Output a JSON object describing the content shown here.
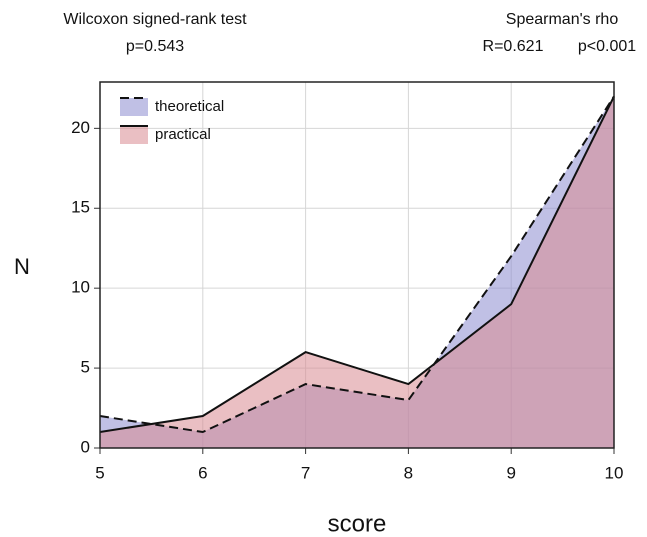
{
  "chart_data": {
    "type": "area",
    "annotations": [
      "Wilcoxon signed-rank test",
      "p=0.543",
      "Spearman's rho",
      "R=0.621",
      "p<0.001"
    ],
    "xlabel": "score",
    "ylabel": "N",
    "x": [
      5,
      6,
      7,
      8,
      9,
      10
    ],
    "series": [
      {
        "name": "theoretical",
        "color": "#8c8ccf",
        "dash": "dashed",
        "values": [
          2,
          1,
          4,
          3,
          12,
          22
        ]
      },
      {
        "name": "practical",
        "color": "#d98a92",
        "dash": "solid",
        "values": [
          1,
          2,
          6,
          4,
          9,
          22
        ]
      }
    ],
    "xlim": [
      5,
      10
    ],
    "xticks": [
      5,
      6,
      7,
      8,
      9,
      10
    ],
    "ylim": [
      0,
      22.9
    ],
    "yticks": [
      0,
      5,
      10,
      15,
      20
    ],
    "grid": true,
    "legend": "upper left"
  }
}
